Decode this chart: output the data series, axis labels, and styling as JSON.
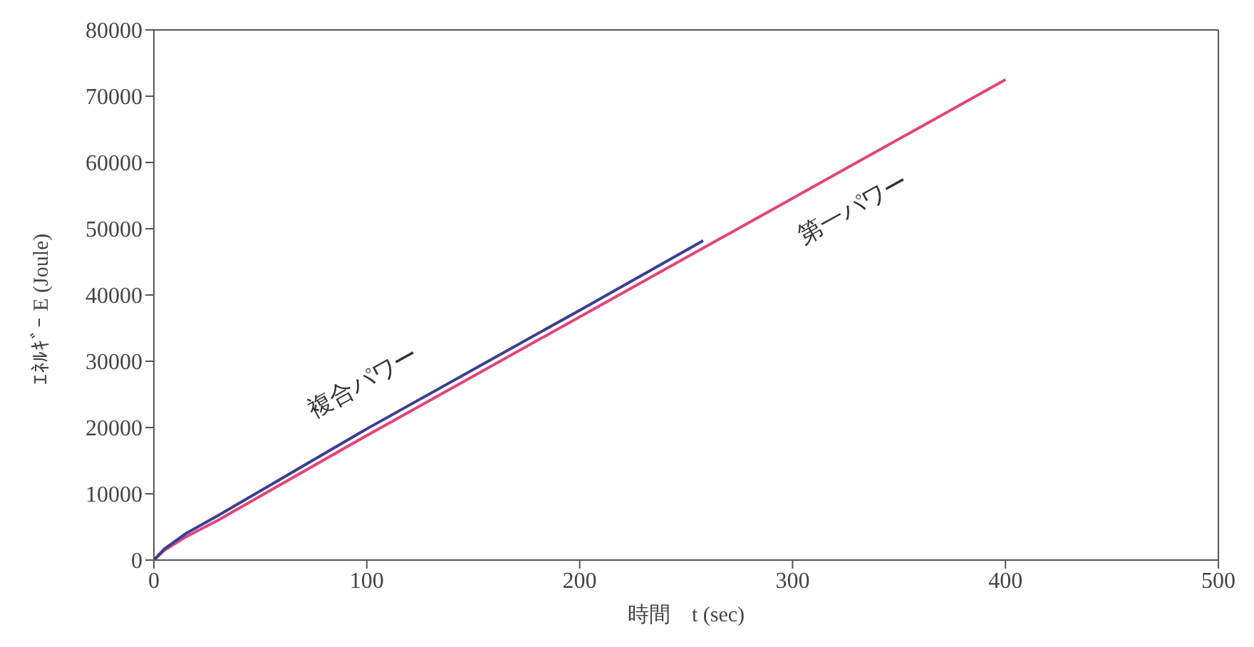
{
  "chart_data": {
    "type": "line",
    "xlabel": "時間　t (sec)",
    "ylabel": "ｴﾈﾙｷﾞｰ E (Joule)",
    "xlim": [
      0,
      500
    ],
    "xticks": [
      0,
      100,
      200,
      300,
      400,
      500
    ],
    "ylim": [
      0,
      80000
    ],
    "yticks": [
      0,
      10000,
      20000,
      30000,
      40000,
      50000,
      60000,
      70000,
      80000
    ],
    "marker": "none",
    "line_style": "solid",
    "series": [
      {
        "name": "第一パワー",
        "color": "#e0457a",
        "x": [
          0,
          5,
          15,
          30,
          100,
          200,
          300,
          400
        ],
        "values": [
          0,
          1500,
          3500,
          6000,
          18800,
          36700,
          54600,
          72500
        ]
      },
      {
        "name": "複合パワー",
        "color": "#3a3f8f",
        "x": [
          0,
          5,
          15,
          30,
          100,
          200,
          258
        ],
        "values": [
          0,
          1700,
          4000,
          6700,
          19800,
          37700,
          48200
        ]
      }
    ]
  }
}
